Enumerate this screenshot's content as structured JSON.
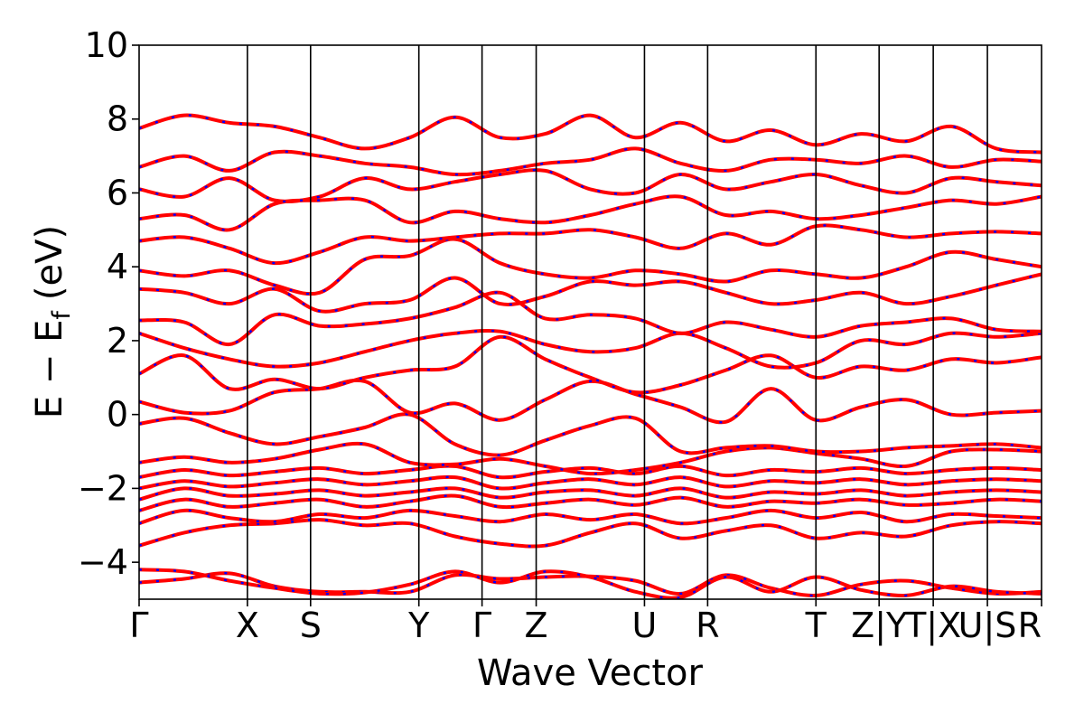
{
  "chart_data": {
    "type": "line",
    "title": "",
    "xlabel": "Wave Vector",
    "ylabel": "E − E_f (eV)",
    "ylabel_parts": {
      "main": "E − E",
      "sub": "f",
      "unit": "(eV)"
    },
    "ylim": [
      -5,
      10
    ],
    "yticks": [
      -4,
      -2,
      0,
      2,
      4,
      6,
      8,
      10
    ],
    "ytick_labels": [
      "−4",
      "−2",
      "0",
      "2",
      "4",
      "6",
      "8",
      "10"
    ],
    "x_range": [
      0,
      10
    ],
    "kpath_boundaries": [
      0,
      1.2,
      1.9,
      3.1,
      3.8,
      4.4,
      5.6,
      6.3,
      7.5,
      8.2,
      8.8,
      9.4,
      10.0
    ],
    "xtick_labels": [
      "Γ",
      "X",
      "S",
      "Y",
      "Γ",
      "Z",
      "U",
      "R",
      "T",
      "Z|Y",
      "T|X",
      "U|S",
      "R"
    ],
    "grid": false,
    "colors": {
      "line": "#ff0000",
      "overlay_dash": "#0000ff",
      "axes": "#000000"
    },
    "series": [
      {
        "values": [
          -4.55,
          -4.45,
          -4.3,
          -4.65,
          -4.8,
          -4.8,
          -4.8,
          -4.35,
          -4.45,
          -4.4,
          -4.38,
          -4.5,
          -4.85,
          -4.35,
          -4.7,
          -4.9,
          -4.6,
          -4.5,
          -4.7,
          -4.85,
          -4.8
        ]
      },
      {
        "values": [
          -4.2,
          -4.25,
          -4.5,
          -4.7,
          -4.85,
          -4.82,
          -4.6,
          -4.25,
          -4.55,
          -4.25,
          -4.4,
          -4.8,
          -4.95,
          -4.4,
          -4.8,
          -4.4,
          -4.75,
          -4.9,
          -4.65,
          -4.8,
          -4.85
        ]
      },
      {
        "values": [
          -3.55,
          -3.2,
          -3.0,
          -2.95,
          -2.85,
          -3.0,
          -2.95,
          -3.3,
          -3.5,
          -3.55,
          -3.2,
          -2.95,
          -3.35,
          -3.15,
          -3.0,
          -3.35,
          -3.2,
          -3.3,
          -3.0,
          -2.9,
          -2.95
        ]
      },
      {
        "values": [
          -2.95,
          -2.6,
          -2.8,
          -2.9,
          -2.7,
          -2.8,
          -2.6,
          -2.75,
          -2.9,
          -2.7,
          -2.85,
          -2.7,
          -2.95,
          -2.8,
          -2.6,
          -2.8,
          -2.65,
          -2.9,
          -2.7,
          -2.75,
          -2.8
        ]
      },
      {
        "values": [
          -2.6,
          -2.3,
          -2.5,
          -2.4,
          -2.3,
          -2.5,
          -2.35,
          -2.2,
          -2.5,
          -2.4,
          -2.3,
          -2.45,
          -2.25,
          -2.5,
          -2.35,
          -2.4,
          -2.3,
          -2.45,
          -2.4,
          -2.3,
          -2.35
        ]
      },
      {
        "values": [
          -2.3,
          -2.0,
          -2.2,
          -2.15,
          -2.05,
          -2.2,
          -2.1,
          -2.0,
          -2.25,
          -2.1,
          -2.05,
          -2.2,
          -2.0,
          -2.25,
          -2.1,
          -2.15,
          -2.05,
          -2.2,
          -2.1,
          -2.05,
          -2.1
        ]
      },
      {
        "values": [
          -2.0,
          -1.8,
          -1.95,
          -1.85,
          -1.75,
          -1.9,
          -1.8,
          -1.7,
          -2.0,
          -1.85,
          -1.75,
          -1.9,
          -1.7,
          -1.95,
          -1.8,
          -1.85,
          -1.75,
          -1.9,
          -1.8,
          -1.75,
          -1.8
        ]
      },
      {
        "values": [
          -1.7,
          -1.5,
          -1.65,
          -1.55,
          -1.45,
          -1.6,
          -1.5,
          -1.4,
          -1.7,
          -1.55,
          -1.45,
          -1.6,
          -1.4,
          -1.65,
          -1.5,
          -1.55,
          -1.45,
          -1.6,
          -1.5,
          -1.45,
          -1.5
        ]
      },
      {
        "values": [
          -1.3,
          -1.15,
          -1.3,
          -1.2,
          -0.95,
          -0.8,
          -1.3,
          -1.35,
          -1.2,
          -1.4,
          -1.6,
          -1.5,
          -1.3,
          -1.0,
          -0.9,
          -1.05,
          -1.2,
          -1.4,
          -1.0,
          -0.95,
          -1.0
        ]
      },
      {
        "values": [
          -0.25,
          -0.1,
          -0.5,
          -0.8,
          -0.6,
          -0.35,
          0.0,
          -0.8,
          -1.1,
          -0.7,
          -0.3,
          -0.1,
          -1.0,
          -0.9,
          -0.85,
          -1.0,
          -1.0,
          -0.9,
          -0.85,
          -0.8,
          -0.9
        ]
      },
      {
        "values": [
          0.35,
          0.05,
          0.1,
          0.6,
          0.7,
          0.9,
          0.05,
          0.3,
          -0.15,
          0.4,
          0.9,
          0.55,
          0.2,
          -0.2,
          0.7,
          -0.15,
          0.2,
          0.4,
          0.0,
          0.05,
          0.1
        ]
      },
      {
        "values": [
          1.1,
          1.6,
          0.7,
          0.95,
          0.7,
          1.0,
          1.2,
          1.3,
          2.1,
          1.5,
          1.0,
          0.6,
          0.8,
          1.2,
          1.6,
          1.0,
          1.3,
          1.2,
          1.5,
          1.4,
          1.55
        ]
      },
      {
        "values": [
          2.2,
          1.8,
          1.5,
          1.3,
          1.4,
          1.7,
          2.0,
          2.2,
          2.25,
          1.9,
          1.7,
          1.8,
          2.2,
          1.8,
          1.3,
          1.4,
          2.0,
          1.9,
          2.2,
          2.1,
          2.2
        ]
      },
      {
        "values": [
          2.55,
          2.5,
          1.9,
          2.7,
          2.4,
          2.45,
          2.6,
          2.9,
          3.3,
          2.6,
          2.7,
          2.6,
          2.2,
          2.5,
          2.3,
          2.1,
          2.4,
          2.5,
          2.6,
          2.3,
          2.25
        ]
      },
      {
        "values": [
          3.4,
          3.3,
          3.0,
          3.4,
          2.8,
          3.0,
          3.1,
          3.7,
          3.0,
          3.2,
          3.6,
          3.5,
          3.6,
          3.3,
          3.0,
          3.1,
          3.3,
          3.0,
          3.2,
          3.5,
          3.8
        ]
      },
      {
        "values": [
          3.9,
          3.75,
          3.9,
          3.5,
          3.3,
          4.2,
          4.3,
          4.75,
          4.1,
          3.8,
          3.7,
          3.9,
          3.8,
          3.6,
          3.9,
          3.8,
          3.7,
          4.0,
          4.4,
          4.2,
          4.0
        ]
      },
      {
        "values": [
          4.7,
          4.8,
          4.5,
          4.1,
          4.4,
          4.8,
          4.7,
          4.8,
          4.9,
          4.9,
          5.0,
          4.8,
          4.5,
          4.9,
          4.6,
          5.1,
          5.0,
          4.8,
          4.9,
          4.95,
          4.9
        ]
      },
      {
        "values": [
          5.3,
          5.4,
          5.0,
          5.7,
          5.8,
          5.8,
          5.2,
          5.5,
          5.3,
          5.2,
          5.4,
          5.7,
          5.9,
          5.4,
          5.5,
          5.3,
          5.4,
          5.6,
          5.8,
          5.7,
          5.9
        ]
      },
      {
        "values": [
          6.1,
          5.9,
          6.4,
          5.8,
          5.9,
          6.4,
          6.1,
          6.3,
          6.5,
          6.6,
          6.1,
          6.0,
          6.5,
          6.1,
          6.3,
          6.5,
          6.2,
          6.0,
          6.4,
          6.3,
          6.2
        ]
      },
      {
        "values": [
          6.7,
          7.0,
          6.6,
          7.1,
          7.0,
          6.8,
          6.7,
          6.5,
          6.6,
          6.8,
          6.9,
          7.2,
          6.8,
          6.6,
          6.9,
          6.9,
          6.8,
          7.0,
          6.7,
          6.9,
          6.85
        ]
      },
      {
        "values": [
          7.75,
          8.1,
          7.9,
          7.8,
          7.5,
          7.2,
          7.5,
          8.05,
          7.5,
          7.6,
          8.1,
          7.5,
          7.9,
          7.4,
          7.7,
          7.3,
          7.6,
          7.4,
          7.8,
          7.2,
          7.1
        ]
      }
    ]
  }
}
